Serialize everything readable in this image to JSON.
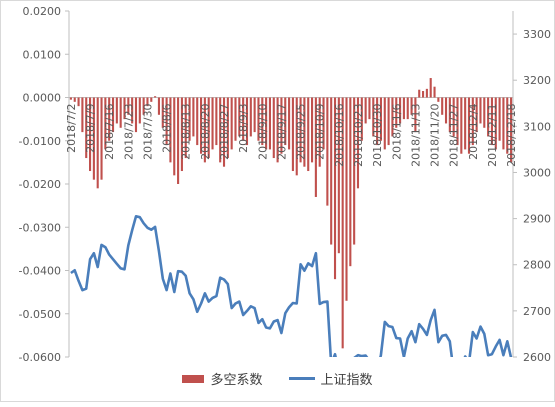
{
  "chart_data": {
    "type": "bar+line",
    "title": "",
    "categories": [
      "2018/7/2",
      "2018/7/3",
      "2018/7/4",
      "2018/7/5",
      "2018/7/6",
      "2018/7/9",
      "2018/7/10",
      "2018/7/11",
      "2018/7/12",
      "2018/7/13",
      "2018/7/16",
      "2018/7/17",
      "2018/7/18",
      "2018/7/19",
      "2018/7/20",
      "2018/7/23",
      "2018/7/24",
      "2018/7/25",
      "2018/7/26",
      "2018/7/27",
      "2018/7/30",
      "2018/7/31",
      "2018/8/1",
      "2018/8/2",
      "2018/8/3",
      "2018/8/6",
      "2018/8/7",
      "2018/8/8",
      "2018/8/9",
      "2018/8/10",
      "2018/8/13",
      "2018/8/14",
      "2018/8/15",
      "2018/8/16",
      "2018/8/17",
      "2018/8/20",
      "2018/8/21",
      "2018/8/22",
      "2018/8/23",
      "2018/8/24",
      "2018/8/27",
      "2018/8/28",
      "2018/8/29",
      "2018/8/30",
      "2018/8/31",
      "2018/9/3",
      "2018/9/4",
      "2018/9/5",
      "2018/9/6",
      "2018/9/7",
      "2018/9/10",
      "2018/9/11",
      "2018/9/12",
      "2018/9/13",
      "2018/9/14",
      "2018/9/17",
      "2018/9/18",
      "2018/9/19",
      "2018/9/20",
      "2018/9/21",
      "2018/9/25",
      "2018/9/26",
      "2018/9/27",
      "2018/9/28",
      "2018/10/8",
      "2018/10/9",
      "2018/10/10",
      "2018/10/11",
      "2018/10/12",
      "2018/10/15",
      "2018/10/16",
      "2018/10/17",
      "2018/10/18",
      "2018/10/19",
      "2018/10/22",
      "2018/10/23",
      "2018/10/24",
      "2018/10/25",
      "2018/10/26",
      "2018/10/29",
      "2018/10/30",
      "2018/10/31",
      "2018/11/1",
      "2018/11/2",
      "2018/11/5",
      "2018/11/6",
      "2018/11/7",
      "2018/11/8",
      "2018/11/9",
      "2018/11/12",
      "2018/11/13",
      "2018/11/14",
      "2018/11/15",
      "2018/11/16",
      "2018/11/19",
      "2018/11/20",
      "2018/11/21",
      "2018/11/22",
      "2018/11/23",
      "2018/11/26",
      "2018/11/27",
      "2018/11/28",
      "2018/11/29",
      "2018/11/30",
      "2018/12/3",
      "2018/12/4",
      "2018/12/5",
      "2018/12/6",
      "2018/12/7",
      "2018/12/10",
      "2018/12/11",
      "2018/12/12",
      "2018/12/13",
      "2018/12/14",
      "2018/12/17",
      "2018/12/18"
    ],
    "tick_labels": [
      "2018/7/2",
      "2018/7/9",
      "2018/7/16",
      "2018/7/23",
      "2018/7/30",
      "2018/8/6",
      "2018/8/13",
      "2018/8/20",
      "2018/8/27",
      "2018/9/3",
      "2018/9/10",
      "2018/9/17",
      "2018/9/25",
      "2018/10/9",
      "2018/10/16",
      "2018/10/23",
      "2018/10/30",
      "2018/11/6",
      "2018/11/13",
      "2018/11/20",
      "2018/11/27",
      "2018/12/4",
      "2018/12/11",
      "2018/12/18"
    ],
    "series": [
      {
        "name": "多空系数",
        "kind": "bar",
        "axis": "left",
        "color": "#c0504d",
        "values": [
          -0.0005,
          -0.001,
          -0.002,
          -0.008,
          -0.014,
          -0.017,
          -0.019,
          -0.021,
          -0.019,
          -0.012,
          -0.01,
          -0.008,
          -0.006,
          -0.007,
          -0.005,
          -0.004,
          -0.006,
          -0.008,
          -0.006,
          -0.004,
          -0.002,
          -0.001,
          0.0003,
          -0.004,
          -0.007,
          -0.011,
          -0.015,
          -0.018,
          -0.02,
          -0.017,
          -0.014,
          -0.01,
          -0.009,
          -0.011,
          -0.013,
          -0.015,
          -0.014,
          -0.012,
          -0.011,
          -0.015,
          -0.016,
          -0.014,
          -0.012,
          -0.01,
          -0.009,
          -0.01,
          -0.011,
          -0.009,
          -0.008,
          -0.01,
          -0.011,
          -0.012,
          -0.012,
          -0.014,
          -0.015,
          -0.013,
          -0.011,
          -0.012,
          -0.017,
          -0.018,
          -0.015,
          -0.016,
          -0.017,
          -0.015,
          -0.023,
          -0.016,
          -0.012,
          -0.025,
          -0.034,
          -0.042,
          -0.036,
          -0.058,
          -0.047,
          -0.039,
          -0.034,
          -0.021,
          -0.01,
          -0.006,
          -0.005,
          -0.009,
          -0.011,
          -0.01,
          -0.012,
          -0.011,
          -0.009,
          -0.007,
          -0.006,
          -0.005,
          -0.005,
          -0.004,
          -0.008,
          0.0018,
          0.0015,
          0.002,
          0.0045,
          0.0025,
          -0.001,
          -0.004,
          -0.006,
          -0.008,
          -0.009,
          -0.011,
          -0.013,
          -0.012,
          -0.013,
          -0.011,
          -0.008,
          -0.006,
          -0.007,
          -0.009,
          -0.011,
          -0.012,
          -0.01,
          -0.012,
          -0.013,
          -0.015
        ]
      },
      {
        "name": "上证指数",
        "kind": "line",
        "axis": "right",
        "color": "#4a7ebb",
        "values": [
          2782,
          2788,
          2765,
          2745,
          2748,
          2812,
          2825,
          2795,
          2843,
          2838,
          2822,
          2812,
          2802,
          2792,
          2790,
          2842,
          2875,
          2905,
          2903,
          2890,
          2880,
          2876,
          2882,
          2830,
          2770,
          2745,
          2781,
          2741,
          2786,
          2785,
          2776,
          2738,
          2725,
          2698,
          2716,
          2738,
          2720,
          2728,
          2732,
          2772,
          2768,
          2758,
          2706,
          2716,
          2720,
          2691,
          2700,
          2710,
          2706,
          2674,
          2682,
          2664,
          2662,
          2677,
          2680,
          2652,
          2695,
          2708,
          2717,
          2716,
          2801,
          2787,
          2803,
          2797,
          2825,
          2715,
          2719,
          2720,
          2584,
          2606,
          2568,
          2546,
          2485,
          2550,
          2598,
          2604,
          2602,
          2603,
          2592,
          2542,
          2572,
          2604,
          2676,
          2667,
          2665,
          2641,
          2640,
          2600,
          2640,
          2656,
          2632,
          2671,
          2661,
          2648,
          2680,
          2702,
          2632,
          2646,
          2648,
          2634,
          2567,
          2580,
          2580,
          2601,
          2588,
          2654,
          2640,
          2666,
          2650,
          2604,
          2606,
          2623,
          2637,
          2604,
          2634,
          2598
        ]
      }
    ],
    "y_left": {
      "min": -0.06,
      "max": 0.02,
      "ticks": [
        "0.0200",
        "0.0100",
        "0.0000",
        "-0.0100",
        "-0.0200",
        "-0.0300",
        "-0.0400",
        "-0.0500",
        "-0.0600"
      ],
      "tick_values": [
        0.02,
        0.01,
        0,
        -0.01,
        -0.02,
        -0.03,
        -0.04,
        -0.05,
        -0.06
      ]
    },
    "y_right": {
      "min": 2600,
      "max": 3350,
      "ticks": [
        "3300",
        "3200",
        "3100",
        "3000",
        "2900",
        "2800",
        "2700",
        "2600"
      ],
      "tick_values": [
        3300,
        3200,
        3100,
        3000,
        2900,
        2800,
        2700,
        2600
      ]
    },
    "legend_position": "bottom",
    "grid": false
  }
}
